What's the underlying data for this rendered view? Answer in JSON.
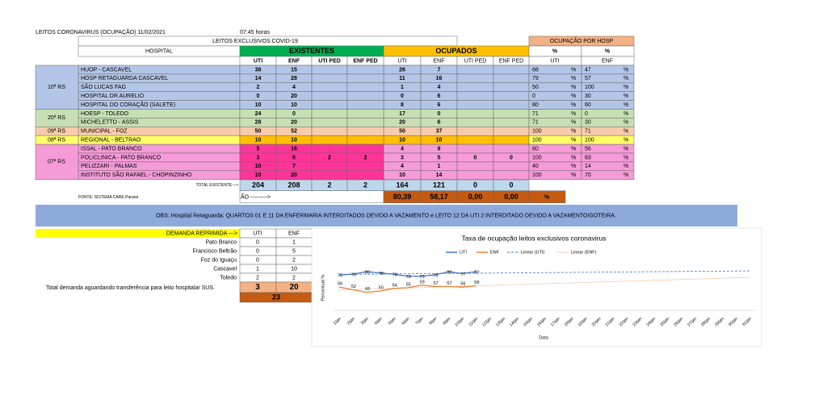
{
  "header": {
    "title": "LEITOS CORONAVIRUS (OCUPAÇÃO) 11/02/2021",
    "time": "07:45 horas",
    "subtitle": "LEITOS EXCLUSIVOS COVID-19",
    "occupancy_title": "OCUPAÇÃO POR HOSP"
  },
  "table": {
    "hospital_header": "HOSPITAL",
    "existing_header": "EXISTENTES",
    "occupied_header": "OCUPADOS",
    "sub_headers": [
      "UTI",
      "ENF",
      "UTI PED",
      "ENF PED"
    ],
    "pct_headers": [
      "%",
      "%"
    ],
    "pct_sub": [
      "UTI",
      "ENF"
    ],
    "pct_sign": "%",
    "groups": [
      {
        "name": "10ª RS",
        "color": "#b4c6e7",
        "rows": [
          {
            "hospital": "HUOP - CASCAVEL",
            "existing": [
              38,
              15,
              null,
              null
            ],
            "occupied": [
              26,
              7,
              null,
              null
            ],
            "pct": [
              68,
              47
            ]
          },
          {
            "hospital": "HOSP RETAGUARDA CASCAVEL",
            "existing": [
              14,
              28,
              null,
              null
            ],
            "occupied": [
              11,
              16,
              null,
              null
            ],
            "pct": [
              79,
              57
            ]
          },
          {
            "hospital": "SÃO LUCAS FAG",
            "existing": [
              2,
              4,
              null,
              null
            ],
            "occupied": [
              1,
              4,
              null,
              null
            ],
            "pct": [
              50,
              100
            ]
          },
          {
            "hospital": "HOSPITAL DR AURELIO",
            "existing": [
              0,
              20,
              null,
              null
            ],
            "occupied": [
              0,
              6,
              null,
              null
            ],
            "pct": [
              0,
              30
            ]
          },
          {
            "hospital": "HOSPITAL DO CORAÇÃO (SALETE)",
            "existing": [
              10,
              10,
              null,
              null
            ],
            "occupied": [
              8,
              6,
              null,
              null
            ],
            "pct": [
              80,
              60
            ]
          }
        ]
      },
      {
        "name": "20ª RS",
        "color": "#c6e0b4",
        "rows": [
          {
            "hospital": "HOESP - TOLEDO",
            "existing": [
              24,
              0,
              null,
              null
            ],
            "occupied": [
              17,
              0,
              null,
              null
            ],
            "pct": [
              71,
              0
            ]
          },
          {
            "hospital": "MICHELETTO - ASSIS",
            "existing": [
              28,
              20,
              null,
              null
            ],
            "occupied": [
              20,
              6,
              null,
              null
            ],
            "pct": [
              71,
              30
            ]
          }
        ]
      },
      {
        "name": "09ª RS",
        "color": "#f8cbad",
        "rows": [
          {
            "hospital": "MUNICIPAL - FOZ",
            "existing": [
              50,
              52,
              null,
              null
            ],
            "occupied": [
              50,
              37,
              null,
              null
            ],
            "pct": [
              100,
              71
            ]
          }
        ]
      },
      {
        "name": "08ª RS",
        "color": "#ffff66",
        "existing_color": "#ffc000",
        "occupied_color": "#ffc000",
        "rows": [
          {
            "hospital": "REGIONAL - BELTRAO",
            "existing": [
              10,
              10,
              null,
              null
            ],
            "occupied": [
              10,
              10,
              null,
              null
            ],
            "pct": [
              100,
              100
            ]
          }
        ]
      },
      {
        "name": "07ª RS",
        "color": "#f59bd8",
        "existing_color": "#ff3399",
        "rows": [
          {
            "hospital": "ISSAL - PATO BRANCO",
            "existing": [
              5,
              16,
              null,
              null
            ],
            "occupied": [
              4,
              9,
              null,
              null
            ],
            "pct": [
              80,
              56
            ]
          },
          {
            "hospital": "POLICLINICA - PATO BRANCO",
            "existing": [
              3,
              6,
              2,
              2
            ],
            "occupied": [
              3,
              5,
              0,
              0
            ],
            "pct": [
              100,
              83
            ]
          },
          {
            "hospital": "PELIZZARI - PALMAS",
            "existing": [
              10,
              7,
              null,
              null
            ],
            "occupied": [
              4,
              1,
              null,
              null
            ],
            "pct": [
              40,
              14
            ]
          },
          {
            "hospital": "INSTITUTO SÃO RAFAEL - CHOPINZINHO",
            "existing": [
              10,
              20,
              null,
              null
            ],
            "occupied": [
              10,
              14,
              null,
              null
            ],
            "pct": [
              100,
              70
            ]
          }
        ]
      }
    ],
    "total_label": "TOTAL EXISTENTE--->",
    "totals_existing": [
      204,
      208,
      2,
      2
    ],
    "totals_occupied": [
      164,
      121,
      0,
      0
    ],
    "source": "FONTE: SISTEMA CARE Paraná",
    "pct_row_label": "ÃO --------->",
    "pct_totals": [
      "80,39",
      "58,17",
      "0,00",
      "0,00"
    ],
    "pct_total_sign": "%"
  },
  "note": "OBS: Hospital Retaguarda: QUARTOS 01 E 11 DA ENFERMARIA INTERDITADOS DEVIDO A VAZAMENTO e LEITO 12 DA UTI 2 INTERDITADO DEVIDO A VAZAMENTO/GOTEIRA.",
  "demand": {
    "header": "DEMANDA REPRIMIDA --->",
    "cols": [
      "UTI",
      "ENF"
    ],
    "rows": [
      {
        "city": "Pato Branco",
        "values": [
          0,
          1
        ]
      },
      {
        "city": "Francisco Beltrão",
        "values": [
          0,
          5
        ]
      },
      {
        "city": "Foz do Iguaçu",
        "values": [
          0,
          2
        ]
      },
      {
        "city": "Cascavel",
        "values": [
          1,
          10
        ]
      },
      {
        "city": "Toledo",
        "values": [
          2,
          2
        ]
      }
    ],
    "totals": [
      3,
      20
    ],
    "grand_total": 23,
    "caption": "Total demanda aguardando transferência para leito hospitalar SUS."
  },
  "chart_data": {
    "type": "line",
    "title": "Taxa de ocupação leitos exclusivos coronavirus",
    "x_label": "Data",
    "y_label": "Percentual %",
    "categories": [
      "1/jan",
      "2/jan",
      "3/jan",
      "4/jan",
      "5/jan",
      "6/jan",
      "7/jan",
      "8/jan",
      "9/jan",
      "10/jan",
      "11/jan",
      "12/jan",
      "13/jan",
      "14/jan",
      "15/jan",
      "16/jan",
      "17/jan",
      "18/jan",
      "19/jan",
      "20/jan",
      "21/jan",
      "22/jan",
      "23/jan",
      "24/jan",
      "25/jan",
      "26/jan",
      "27/jan",
      "28/jan",
      "29/jan",
      "30/jan",
      "31/jan"
    ],
    "ylim": [
      20,
      120
    ],
    "series": [
      {
        "name": "UTI",
        "color": "#4472c4",
        "values": [
          75,
          76,
          80,
          78,
          76,
          73,
          73,
          75,
          80,
          77,
          80,
          null,
          null,
          null,
          null,
          null,
          null,
          null,
          null,
          null,
          null,
          null,
          null,
          null,
          null,
          null,
          null,
          null,
          null,
          null,
          null
        ]
      },
      {
        "name": "ENF",
        "color": "#ed7d31",
        "values": [
          56,
          52,
          48,
          50,
          54,
          55,
          59,
          57,
          57,
          56,
          58,
          null,
          null,
          null,
          null,
          null,
          null,
          null,
          null,
          null,
          null,
          null,
          null,
          null,
          null,
          null,
          null,
          null,
          null,
          null,
          null
        ]
      }
    ],
    "trendlines": [
      {
        "name": "Linear (UTI)",
        "series": "UTI",
        "color": "#4472c4",
        "dash": "3,2"
      },
      {
        "name": "Linear (ENF)",
        "series": "ENF",
        "color": "#ed7d31",
        "dash": "1,1.5"
      }
    ]
  }
}
